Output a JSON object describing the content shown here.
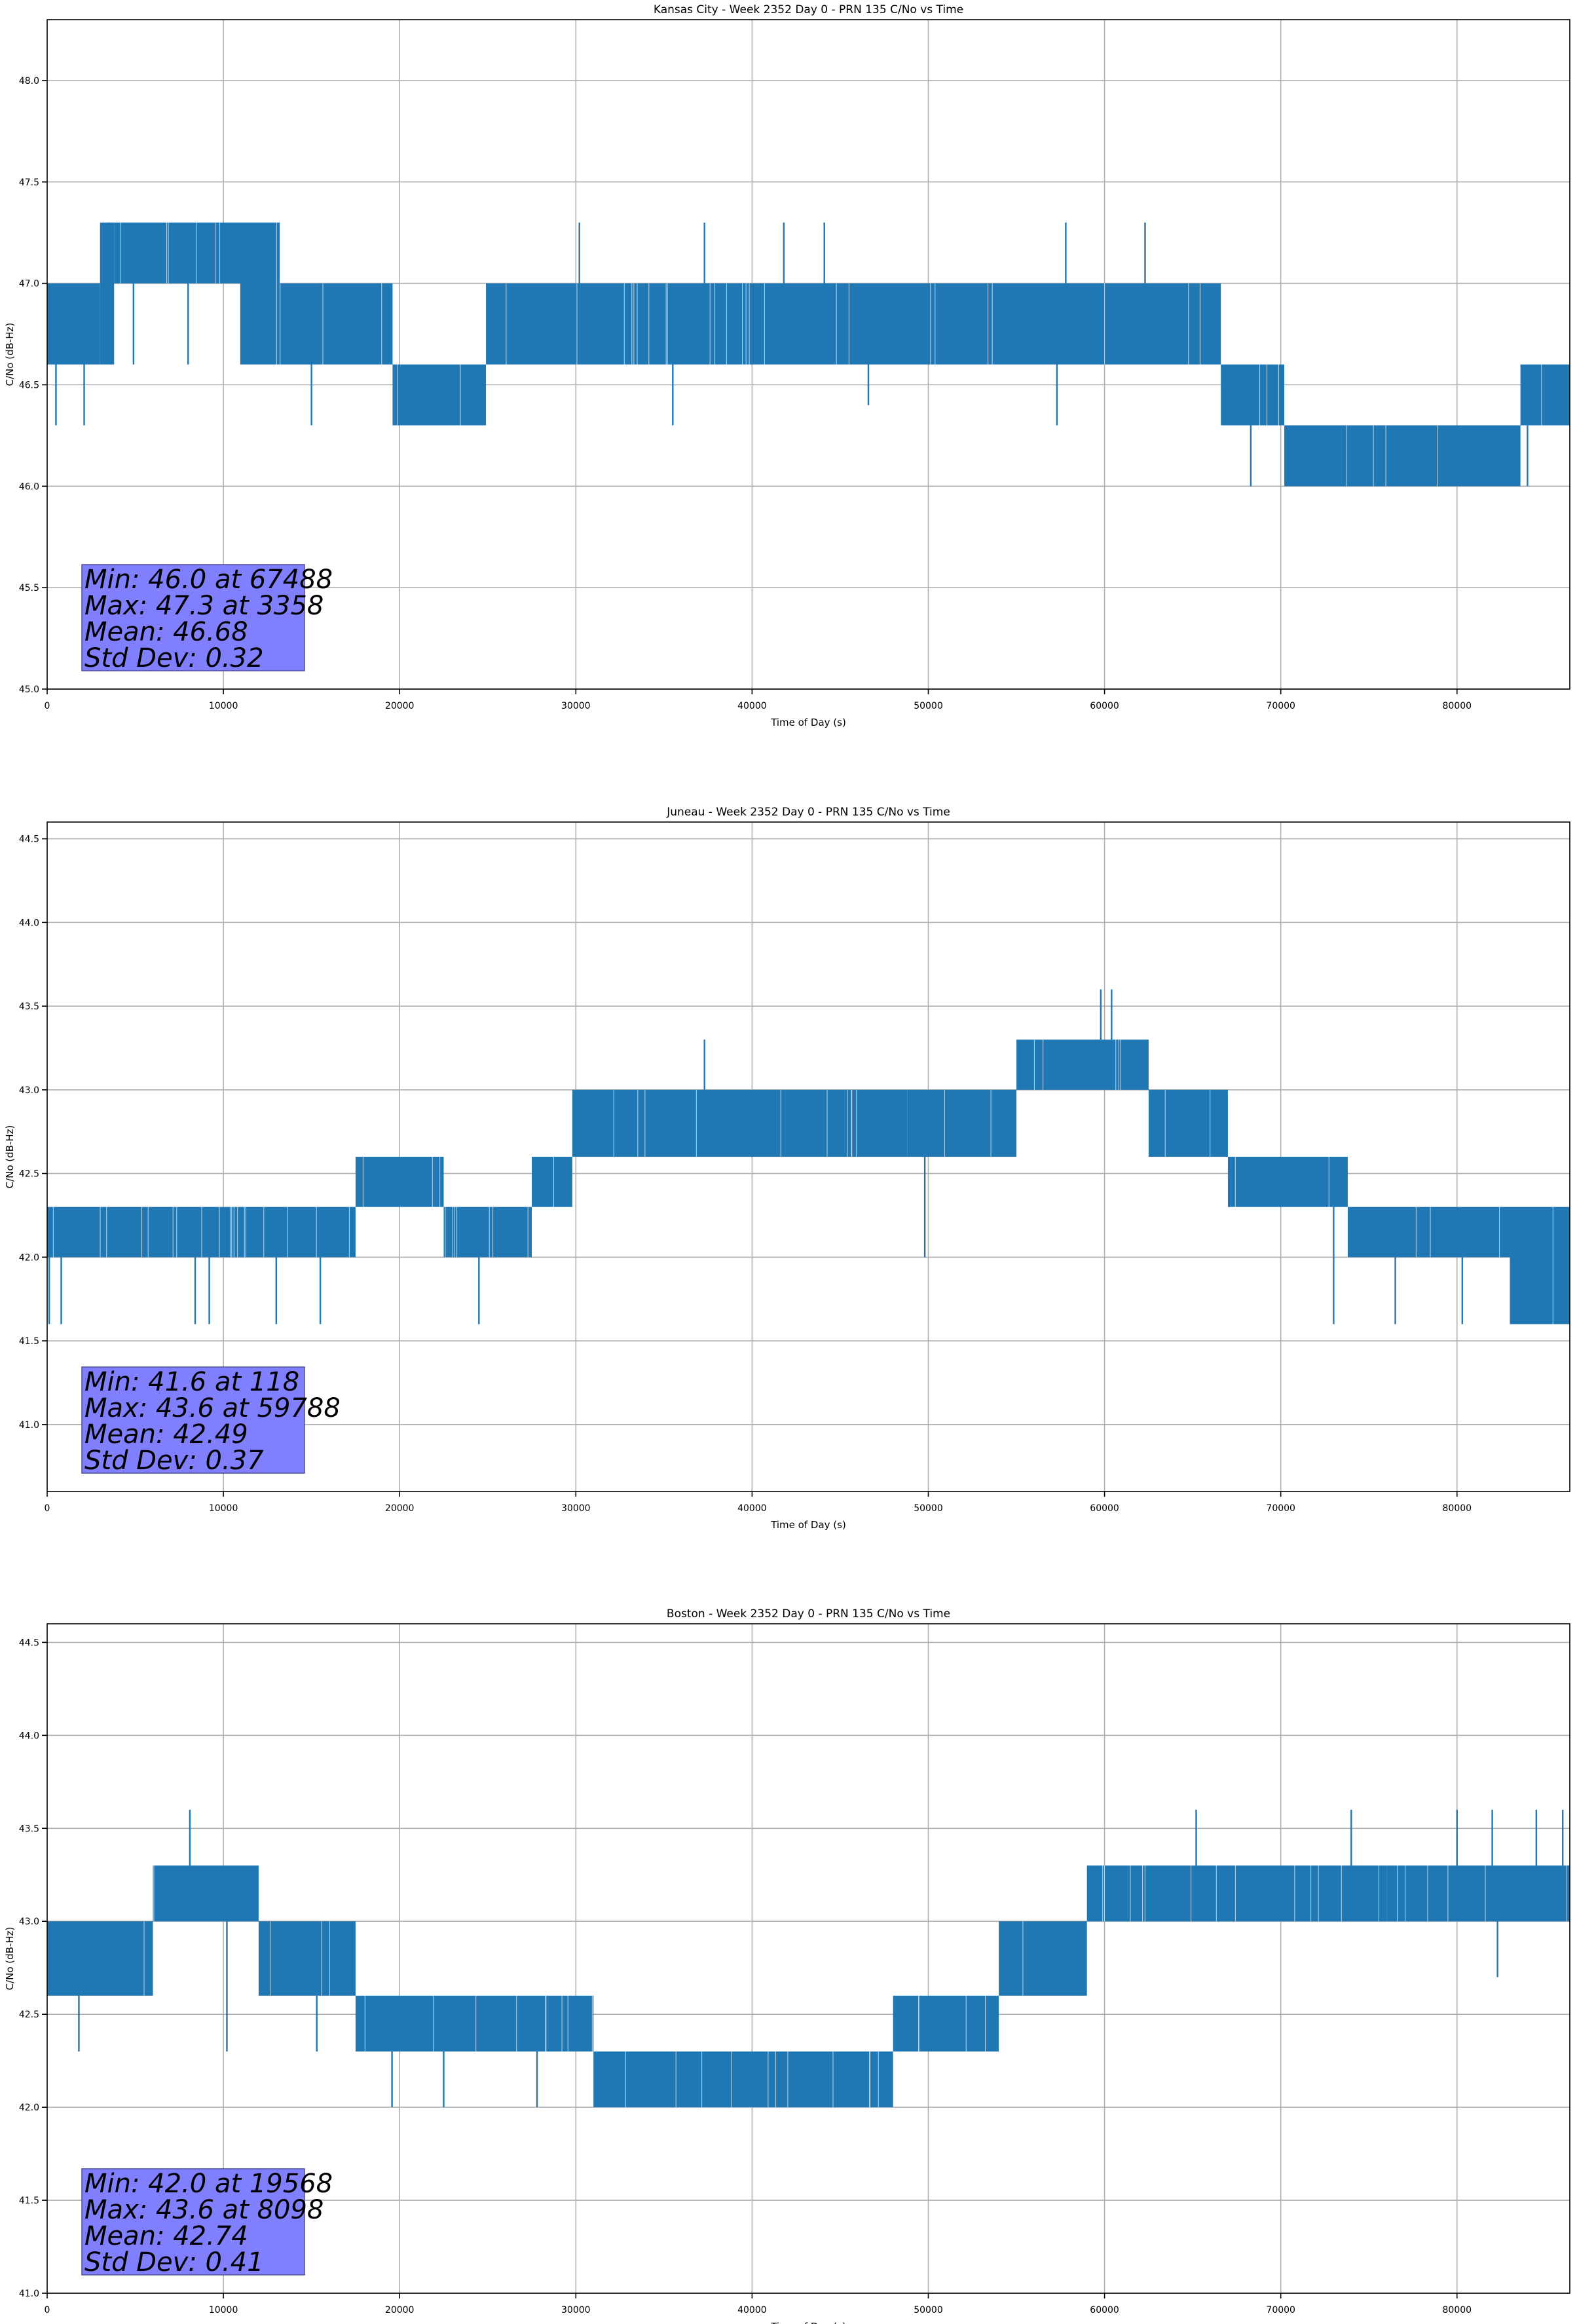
{
  "figure": {
    "colors": {
      "line": "#1f77b4",
      "grid": "#b0b0b0",
      "stats_box": "#8080ff",
      "axes": "#000000"
    }
  },
  "chart_data": [
    {
      "type": "line",
      "title": "Kansas City - Week 2352 Day 0 - PRN 135 C/No vs Time",
      "xlabel": "Time of Day (s)",
      "ylabel": "C/No (dB-Hz)",
      "xlim": [
        0,
        86400
      ],
      "ylim": [
        45.0,
        48.3
      ],
      "xticks": [
        0,
        10000,
        20000,
        30000,
        40000,
        50000,
        60000,
        70000,
        80000
      ],
      "yticks": [
        45.0,
        45.5,
        46.0,
        46.5,
        47.0,
        47.5,
        48.0
      ],
      "ytick_labels": [
        "45.0",
        "45.5",
        "46.0",
        "46.5",
        "47.0",
        "47.5",
        "48.0"
      ],
      "grid": true,
      "levels": [
        [
          0,
          3000,
          46.6,
          47.0
        ],
        [
          3000,
          3800,
          46.6,
          47.3
        ],
        [
          3800,
          11000,
          47.0,
          47.3
        ],
        [
          11000,
          13200,
          46.6,
          47.3
        ],
        [
          13200,
          19600,
          46.6,
          47.0
        ],
        [
          19600,
          24900,
          46.3,
          46.6
        ],
        [
          24900,
          65400,
          46.6,
          47.0
        ],
        [
          65400,
          66600,
          46.6,
          47.0
        ],
        [
          66600,
          70200,
          46.3,
          46.6
        ],
        [
          70200,
          83600,
          46.0,
          46.3
        ],
        [
          83600,
          86400,
          46.3,
          46.6
        ]
      ],
      "spikes": [
        [
          500,
          46.3
        ],
        [
          2100,
          46.3
        ],
        [
          3500,
          47.3
        ],
        [
          4900,
          46.6
        ],
        [
          8000,
          46.6
        ],
        [
          11000,
          46.6
        ],
        [
          15000,
          46.3
        ],
        [
          20800,
          46.3
        ],
        [
          30200,
          47.3
        ],
        [
          35500,
          46.3
        ],
        [
          37300,
          47.3
        ],
        [
          41800,
          47.3
        ],
        [
          44100,
          47.3
        ],
        [
          46600,
          46.4
        ],
        [
          57800,
          47.3
        ],
        [
          62300,
          47.3
        ],
        [
          57300,
          46.3
        ],
        [
          68300,
          46.0
        ],
        [
          84000,
          46.0
        ]
      ],
      "stats": {
        "min": "Min: 46.0 at 67488",
        "max": "Max: 47.3 at 3358",
        "mean": "Mean: 46.68",
        "std": "Std Dev: 0.32"
      }
    },
    {
      "type": "line",
      "title": "Juneau - Week 2352 Day 0 - PRN 135 C/No vs Time",
      "xlabel": "Time of Day (s)",
      "ylabel": "C/No (dB-Hz)",
      "xlim": [
        0,
        86400
      ],
      "ylim": [
        40.6,
        44.6
      ],
      "xticks": [
        0,
        10000,
        20000,
        30000,
        40000,
        50000,
        60000,
        70000,
        80000
      ],
      "yticks": [
        41.0,
        41.5,
        42.0,
        42.5,
        43.0,
        43.5,
        44.0,
        44.5
      ],
      "ytick_labels": [
        "41.0",
        "41.5",
        "42.0",
        "42.5",
        "43.0",
        "43.5",
        "44.0",
        "44.5"
      ],
      "grid": true,
      "levels": [
        [
          0,
          17500,
          42.0,
          42.3
        ],
        [
          17500,
          22500,
          42.3,
          42.6
        ],
        [
          22500,
          27500,
          42.0,
          42.3
        ],
        [
          27500,
          29800,
          42.3,
          42.6
        ],
        [
          29800,
          48800,
          42.6,
          43.0
        ],
        [
          48800,
          55000,
          42.6,
          43.0
        ],
        [
          55000,
          62500,
          43.0,
          43.3
        ],
        [
          62500,
          67000,
          42.6,
          43.0
        ],
        [
          67000,
          73800,
          42.3,
          42.6
        ],
        [
          73800,
          83000,
          42.0,
          42.3
        ],
        [
          83000,
          86400,
          41.6,
          42.3
        ]
      ],
      "spikes": [
        [
          118,
          41.6
        ],
        [
          800,
          41.6
        ],
        [
          8400,
          41.6
        ],
        [
          9200,
          41.6
        ],
        [
          13000,
          41.6
        ],
        [
          15500,
          41.6
        ],
        [
          24500,
          41.6
        ],
        [
          37300,
          43.3
        ],
        [
          49800,
          42.0
        ],
        [
          59788,
          43.6
        ],
        [
          60400,
          43.6
        ],
        [
          73000,
          41.6
        ],
        [
          76500,
          41.6
        ],
        [
          80300,
          41.6
        ]
      ],
      "stats": {
        "min": "Min: 41.6 at 118",
        "max": "Max: 43.6 at 59788",
        "mean": "Mean: 42.49",
        "std": "Std Dev: 0.37"
      }
    },
    {
      "type": "line",
      "title": "Boston - Week 2352 Day 0 - PRN 135 C/No vs Time",
      "xlabel": "Time of Day (s)",
      "ylabel": "C/No (dB-Hz)",
      "xlim": [
        0,
        86400
      ],
      "ylim": [
        41.0,
        44.6
      ],
      "xticks": [
        0,
        10000,
        20000,
        30000,
        40000,
        50000,
        60000,
        70000,
        80000
      ],
      "yticks": [
        41.0,
        41.5,
        42.0,
        42.5,
        43.0,
        43.5,
        44.0,
        44.5
      ],
      "ytick_labels": [
        "41.0",
        "41.5",
        "42.0",
        "42.5",
        "43.0",
        "43.5",
        "44.0",
        "44.5"
      ],
      "grid": true,
      "levels": [
        [
          0,
          6000,
          42.6,
          43.0
        ],
        [
          6000,
          12000,
          43.0,
          43.3
        ],
        [
          12000,
          17500,
          42.6,
          43.0
        ],
        [
          17500,
          31000,
          42.3,
          42.6
        ],
        [
          31000,
          48000,
          42.0,
          42.3
        ],
        [
          48000,
          54000,
          42.3,
          42.6
        ],
        [
          54000,
          59000,
          42.6,
          43.0
        ],
        [
          59000,
          76000,
          43.0,
          43.3
        ],
        [
          76000,
          86400,
          43.0,
          43.3
        ]
      ],
      "spikes": [
        [
          8098,
          43.6
        ],
        [
          10200,
          42.3
        ],
        [
          15300,
          42.3
        ],
        [
          1800,
          42.3
        ],
        [
          19568,
          42.0
        ],
        [
          22500,
          42.0
        ],
        [
          27800,
          42.0
        ],
        [
          31500,
          42.0
        ],
        [
          65200,
          43.6
        ],
        [
          74000,
          43.6
        ],
        [
          80000,
          43.6
        ],
        [
          82000,
          43.6
        ],
        [
          84500,
          43.6
        ],
        [
          86000,
          43.6
        ],
        [
          82300,
          42.7
        ]
      ],
      "stats": {
        "min": "Min: 42.0 at 19568",
        "max": "Max: 43.6 at 8098",
        "mean": "Mean: 42.74",
        "std": "Std Dev: 0.41"
      }
    }
  ]
}
